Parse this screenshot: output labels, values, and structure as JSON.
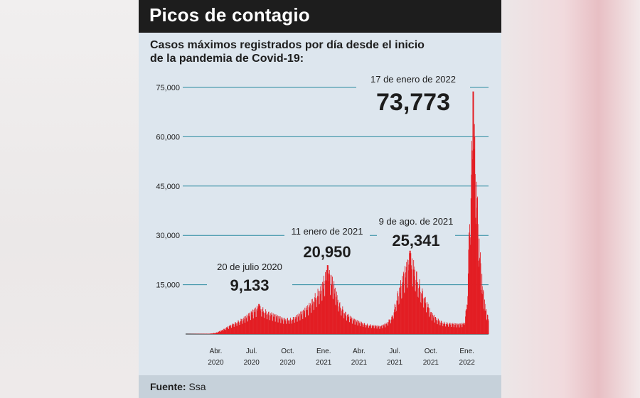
{
  "title": "Picos de contagio",
  "subtitle_line1": "Casos máximos registrados por día desde el inicio",
  "subtitle_line2": "de la pandemia de Covid-19:",
  "footer": {
    "label": "Fuente:",
    "source": "Ssa"
  },
  "colors": {
    "bars": "#e31e24",
    "grid": "#2b8aa0",
    "title_bg": "#1d1d1d",
    "card_bg": "#dde6ee"
  },
  "chart_data": {
    "type": "area",
    "title": "Picos de contagio",
    "subtitle": "Casos máximos registrados por día desde el inicio de la pandemia de Covid-19:",
    "xlabel": "",
    "ylabel": "",
    "ylim": [
      0,
      75000
    ],
    "yticks": [
      15000,
      30000,
      45000,
      60000,
      75000
    ],
    "ytick_labels": [
      "15,000",
      "30,000",
      "45,000",
      "60,000",
      "75,000"
    ],
    "x_range": [
      "2020-01-15",
      "2022-02-25"
    ],
    "xticks": [
      {
        "date": "2020-04-01",
        "line1": "Abr.",
        "line2": "2020"
      },
      {
        "date": "2020-07-01",
        "line1": "Jul.",
        "line2": "2020"
      },
      {
        "date": "2020-10-01",
        "line1": "Oct.",
        "line2": "2020"
      },
      {
        "date": "2021-01-01",
        "line1": "Ene.",
        "line2": "2021"
      },
      {
        "date": "2021-04-01",
        "line1": "Abr.",
        "line2": "2021"
      },
      {
        "date": "2021-07-01",
        "line1": "Jul.",
        "line2": "2021"
      },
      {
        "date": "2021-10-01",
        "line1": "Oct.",
        "line2": "2021"
      },
      {
        "date": "2022-01-01",
        "line1": "Ene.",
        "line2": "2022"
      }
    ],
    "grid": true,
    "series": [
      {
        "points": [
          [
            "2020-01-15",
            0
          ],
          [
            "2020-03-15",
            100
          ],
          [
            "2020-04-01",
            400
          ],
          [
            "2020-04-20",
            1500
          ],
          [
            "2020-05-10",
            3000
          ],
          [
            "2020-06-01",
            4500
          ],
          [
            "2020-06-20",
            6000
          ],
          [
            "2020-07-20",
            9133
          ],
          [
            "2020-08-10",
            7200
          ],
          [
            "2020-09-01",
            6000
          ],
          [
            "2020-09-20",
            5000
          ],
          [
            "2020-10-10",
            5000
          ],
          [
            "2020-10-25",
            6000
          ],
          [
            "2020-11-10",
            7500
          ],
          [
            "2020-11-25",
            9500
          ],
          [
            "2020-12-10",
            12500
          ],
          [
            "2020-12-25",
            15500
          ],
          [
            "2021-01-11",
            20950
          ],
          [
            "2021-01-25",
            17000
          ],
          [
            "2021-02-10",
            10000
          ],
          [
            "2021-02-25",
            7000
          ],
          [
            "2021-03-15",
            5000
          ],
          [
            "2021-04-01",
            4000
          ],
          [
            "2021-04-20",
            3200
          ],
          [
            "2021-05-10",
            2800
          ],
          [
            "2021-05-25",
            2500
          ],
          [
            "2021-06-10",
            3500
          ],
          [
            "2021-06-25",
            6000
          ],
          [
            "2021-07-10",
            14000
          ],
          [
            "2021-07-25",
            20000
          ],
          [
            "2021-08-09",
            25341
          ],
          [
            "2021-08-20",
            22000
          ],
          [
            "2021-09-01",
            17000
          ],
          [
            "2021-09-15",
            12000
          ],
          [
            "2021-10-01",
            7000
          ],
          [
            "2021-10-15",
            5000
          ],
          [
            "2021-11-01",
            3800
          ],
          [
            "2021-11-20",
            3500
          ],
          [
            "2021-12-10",
            3200
          ],
          [
            "2021-12-25",
            3500
          ],
          [
            "2022-01-01",
            10000
          ],
          [
            "2022-01-08",
            40000
          ],
          [
            "2022-01-17",
            73773
          ],
          [
            "2022-01-22",
            60000
          ],
          [
            "2022-02-01",
            30000
          ],
          [
            "2022-02-10",
            15000
          ],
          [
            "2022-02-18",
            8000
          ],
          [
            "2022-02-25",
            5000
          ]
        ]
      }
    ],
    "annotations": [
      {
        "date_label": "20 de julio 2020",
        "value_label": "9,133",
        "date": "2020-07-20",
        "value": 9133
      },
      {
        "date_label": "11 enero de 2021",
        "value_label": "20,950",
        "date": "2021-01-11",
        "value": 20950
      },
      {
        "date_label": "9 de ago. de 2021",
        "value_label": "25,341",
        "date": "2021-08-09",
        "value": 25341
      },
      {
        "date_label": "17 de enero de 2022",
        "value_label": "73,773",
        "date": "2022-01-17",
        "value": 73773
      }
    ]
  }
}
